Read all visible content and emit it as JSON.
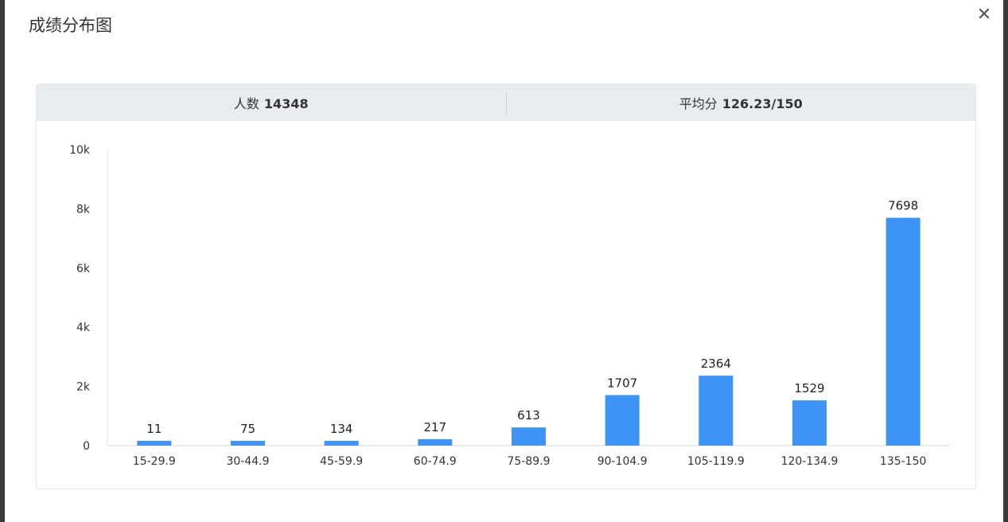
{
  "modal": {
    "title": "成绩分布图",
    "close_icon": "close-icon"
  },
  "stats": {
    "count_label": "人数",
    "count_value": "14348",
    "avg_label": "平均分",
    "avg_value": "126.23/150"
  },
  "chart_data": {
    "type": "bar",
    "title": "",
    "xlabel": "",
    "ylabel": "",
    "categories": [
      "15-29.9",
      "30-44.9",
      "45-59.9",
      "60-74.9",
      "75-89.9",
      "90-104.9",
      "105-119.9",
      "120-134.9",
      "135-150"
    ],
    "values": [
      11,
      75,
      134,
      217,
      613,
      1707,
      2364,
      1529,
      7698
    ],
    "ylim": [
      0,
      10000
    ],
    "yticks": [
      0,
      2000,
      4000,
      6000,
      8000,
      10000
    ],
    "ytick_labels": [
      "0",
      "2k",
      "4k",
      "6k",
      "8k",
      "10k"
    ],
    "bar_color": "#3d94f6",
    "grid": false,
    "legend": "none"
  }
}
